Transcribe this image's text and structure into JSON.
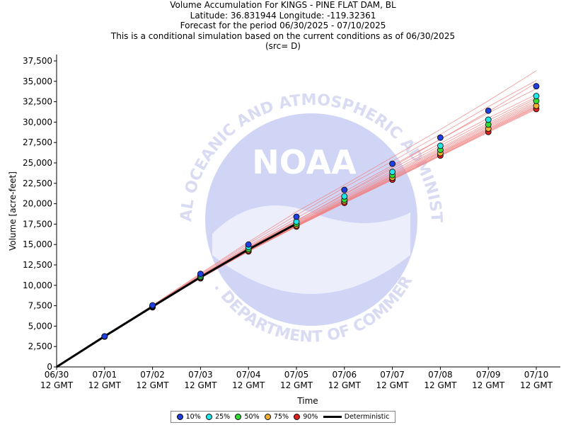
{
  "titles": [
    "Volume Accumulation For KINGS - PINE FLAT DAM, BL",
    "Latitude: 36.831944 Longitude: -119.32361",
    "Forecast for the period 06/30/2025 - 07/10/2025",
    "This is a conditional simulation based on the current conditions as of 06/30/2025",
    "(src= D)"
  ],
  "watermark": {
    "logo_text": "NOAA",
    "ring_top": "NATIONAL OCEANIC AND ATMOSPHERIC ADMINISTRATION",
    "ring_bottom": "U.S. DEPARTMENT OF COMMERCE"
  },
  "chart_data": {
    "type": "line",
    "xlabel": "Time",
    "ylabel": "Volume [acre-feet]",
    "ylim": [
      0,
      37500
    ],
    "yticks": [
      0,
      2500,
      5000,
      7500,
      10000,
      12500,
      15000,
      17500,
      20000,
      22500,
      25000,
      27500,
      30000,
      32500,
      35000,
      37500
    ],
    "ytick_labels": [
      "0",
      "2,500",
      "5,000",
      "7,500",
      "10,000",
      "12,500",
      "15,000",
      "17,500",
      "20,000",
      "22,500",
      "25,000",
      "27,500",
      "30,000",
      "32,500",
      "35,000",
      "37,500"
    ],
    "x_categories": [
      {
        "date": "06/30",
        "time": "12 GMT"
      },
      {
        "date": "07/01",
        "time": "12 GMT"
      },
      {
        "date": "07/02",
        "time": "12 GMT"
      },
      {
        "date": "07/03",
        "time": "12 GMT"
      },
      {
        "date": "07/04",
        "time": "12 GMT"
      },
      {
        "date": "07/05",
        "time": "12 GMT"
      },
      {
        "date": "07/06",
        "time": "12 GMT"
      },
      {
        "date": "07/07",
        "time": "12 GMT"
      },
      {
        "date": "07/08",
        "time": "12 GMT"
      },
      {
        "date": "07/09",
        "time": "12 GMT"
      },
      {
        "date": "07/10",
        "time": "12 GMT"
      }
    ],
    "grid": false,
    "legend_position": "bottom-center",
    "series": [
      {
        "name": "10%",
        "color": "#1f3fe0",
        "values": [
          0,
          3750,
          7550,
          11400,
          15000,
          18400,
          21700,
          24900,
          28100,
          31400,
          34400
        ]
      },
      {
        "name": "25%",
        "color": "#22e6e6",
        "values": [
          0,
          3740,
          7480,
          11250,
          14700,
          17800,
          20900,
          23900,
          27100,
          30300,
          33200
        ]
      },
      {
        "name": "50%",
        "color": "#33dd33",
        "values": [
          0,
          3730,
          7420,
          11050,
          14450,
          17550,
          20500,
          23500,
          26600,
          29700,
          32600
        ]
      },
      {
        "name": "75%",
        "color": "#f0b030",
        "values": [
          0,
          3720,
          7370,
          10950,
          14300,
          17350,
          20300,
          23200,
          26200,
          29200,
          32000
        ]
      },
      {
        "name": "90%",
        "color": "#dd2020",
        "values": [
          0,
          3710,
          7300,
          10850,
          14150,
          17200,
          20100,
          22950,
          25900,
          28800,
          31600
        ]
      },
      {
        "name": "Deterministic",
        "color": "#000000",
        "values": [
          0,
          3750,
          7400,
          11000,
          14400,
          17550
        ]
      }
    ],
    "trace_color": "#f08080",
    "traces": [
      [
        0,
        3760,
        7550,
        11450,
        15300,
        19000,
        22300,
        25700,
        29100,
        32600,
        36300
      ],
      [
        0,
        3755,
        7520,
        11350,
        15100,
        18600,
        22000,
        25200,
        28500,
        31900,
        35100
      ],
      [
        0,
        3750,
        7480,
        11250,
        14850,
        18250,
        21500,
        24700,
        27900,
        31100,
        34100
      ],
      [
        0,
        3745,
        7450,
        11150,
        14700,
        17950,
        21100,
        24300,
        27400,
        30500,
        33400
      ],
      [
        0,
        3740,
        7430,
        11100,
        14600,
        17800,
        20900,
        24000,
        27100,
        30200,
        33100
      ],
      [
        0,
        3738,
        7420,
        11060,
        14520,
        17700,
        20750,
        23800,
        26850,
        29900,
        32900
      ],
      [
        0,
        3735,
        7410,
        11030,
        14460,
        17600,
        20620,
        23650,
        26700,
        29700,
        32650
      ],
      [
        0,
        3732,
        7400,
        11000,
        14400,
        17520,
        20500,
        23500,
        26550,
        29550,
        32450
      ],
      [
        0,
        3730,
        7390,
        10980,
        14350,
        17450,
        20420,
        23400,
        26400,
        29400,
        32300
      ],
      [
        0,
        3728,
        7380,
        10960,
        14310,
        17400,
        20350,
        23300,
        26300,
        29250,
        32150
      ],
      [
        0,
        3725,
        7370,
        10940,
        14270,
        17350,
        20280,
        23200,
        26200,
        29150,
        32000
      ],
      [
        0,
        3722,
        7360,
        10920,
        14230,
        17300,
        20220,
        23120,
        26100,
        29050,
        31900
      ],
      [
        0,
        3720,
        7350,
        10900,
        14200,
        17260,
        20170,
        23050,
        26000,
        28950,
        31800
      ],
      [
        0,
        3715,
        7330,
        10880,
        14170,
        17220,
        20120,
        22980,
        25920,
        28850,
        31700
      ],
      [
        0,
        3710,
        7310,
        10860,
        14140,
        17180,
        20080,
        22920,
        25850,
        28750,
        31600
      ],
      [
        0,
        3760,
        7500,
        11200,
        14650,
        17900,
        21200,
        24500,
        27900,
        31300,
        34800
      ]
    ]
  }
}
